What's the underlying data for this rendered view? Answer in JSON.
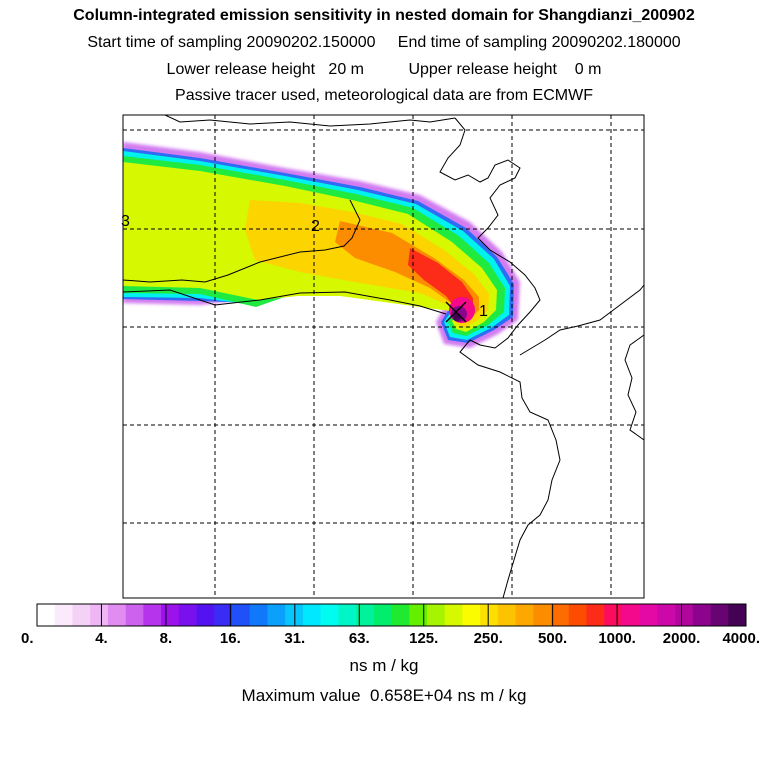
{
  "title": "Column-integrated emission sensitivity in nested domain for Shangdianzi_200902",
  "sampling_line": "Start time of sampling 20090202.150000     End time of sampling 20090202.180000",
  "release_line": "Lower release height   20 m          Upper release height    0 m",
  "tracer_line": "Passive tracer used, meteorological data are from ECMWF",
  "map": {
    "trajectory_labels": [
      "1",
      "2",
      "3"
    ],
    "receptor_marker": "x-mark"
  },
  "colorbar": {
    "tick_labels": [
      "0.",
      "4.",
      "8.",
      "16.",
      "31.",
      "63.",
      "125.",
      "250.",
      "500.",
      "1000.",
      "2000.",
      "4000."
    ],
    "colors": [
      "#ffffff",
      "#fbeafb",
      "#f4d2f8",
      "#eeb6f4",
      "#e08cf0",
      "#cd62ee",
      "#b534ec",
      "#9b12ea",
      "#7a10ee",
      "#5412f0",
      "#3a2cf4",
      "#2050f8",
      "#1278fa",
      "#0aa0fc",
      "#06c6fc",
      "#00e8ff",
      "#00fcf0",
      "#00f6c6",
      "#00f29a",
      "#00ee6c",
      "#20ea30",
      "#64ee00",
      "#a6f400",
      "#d6f800",
      "#fcfc00",
      "#fce000",
      "#fcc400",
      "#fca800",
      "#fc8c00",
      "#fc6c00",
      "#fc4c00",
      "#fc2c18",
      "#fc0c5c",
      "#f4088c",
      "#e408a4",
      "#cc08a8",
      "#b0069c",
      "#8c048c",
      "#680472",
      "#440254"
    ],
    "units": "ns m / kg",
    "max_value_text": "Maximum value  0.658E+04 ns m / kg"
  }
}
